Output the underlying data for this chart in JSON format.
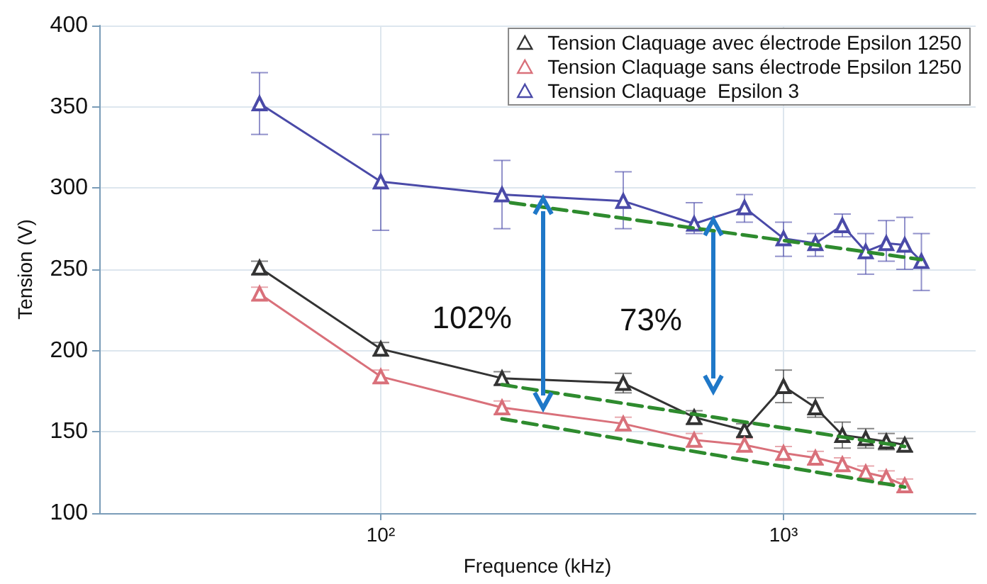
{
  "chart_data": {
    "type": "line",
    "xlabel": "Frequence (kHz)",
    "ylabel": "Tension (V)",
    "log": "x",
    "xlim": [
      20,
      3000
    ],
    "xticks": [
      {
        "value": 100,
        "label": "10²"
      },
      {
        "value": 1000,
        "label": "10³"
      }
    ],
    "ylim": [
      100,
      400
    ],
    "yticks": [
      100,
      150,
      200,
      250,
      300,
      350,
      400
    ],
    "grid": true,
    "legend": "top right",
    "marker": "triangle",
    "series": [
      {
        "name": "Tension Claquage avec électrode Epsilon 1250",
        "color": "#333333",
        "x": [
          50,
          100,
          200,
          400,
          600,
          800,
          1000,
          1200,
          1400,
          1600,
          1800,
          2000
        ],
        "values": [
          251,
          201,
          183,
          180,
          159,
          151,
          178,
          165,
          148,
          146,
          144,
          142
        ],
        "errors": [
          4,
          4,
          4,
          6,
          4,
          4,
          10,
          6,
          8,
          6,
          5,
          4
        ]
      },
      {
        "name": "Tension Claquage sans électrode Epsilon 1250",
        "color": "#d9707a",
        "x": [
          50,
          100,
          200,
          400,
          600,
          800,
          1000,
          1200,
          1400,
          1600,
          1800,
          2000
        ],
        "values": [
          235,
          184,
          165,
          155,
          145,
          142,
          137,
          134,
          130,
          125,
          122,
          117
        ],
        "errors": [
          4,
          4,
          4,
          4,
          4,
          4,
          4,
          4,
          4,
          4,
          4,
          4
        ]
      },
      {
        "name": "Tension Claquage  Epsilon 3",
        "color": "#4a4aa8",
        "x": [
          50,
          100,
          200,
          400,
          600,
          800,
          1000,
          1200,
          1400,
          1600,
          1800,
          2000,
          2200
        ],
        "values": [
          352,
          304,
          296,
          292,
          278,
          288,
          269,
          266,
          277,
          261,
          266,
          265,
          255
        ],
        "errors": [
          [
            333,
            371
          ],
          [
            274,
            333
          ],
          [
            275,
            317
          ],
          [
            275,
            310
          ],
          [
            272,
            291
          ],
          [
            279,
            296
          ],
          [
            258,
            279
          ],
          [
            258,
            272
          ],
          [
            270,
            284
          ],
          [
            247,
            272
          ],
          [
            255,
            280
          ],
          [
            250,
            282
          ],
          [
            237,
            272
          ]
        ]
      },
      {
        "color": "#2e8b2e",
        "line_style": "dashed",
        "marker": "none",
        "x": [
          210,
          2200
        ],
        "values": [
          291,
          256
        ]
      },
      {
        "color": "#2e8b2e",
        "line_style": "dashed",
        "marker": "none",
        "x": [
          200,
          2000
        ],
        "values": [
          179,
          141
        ]
      },
      {
        "color": "#2e8b2e",
        "line_style": "dashed",
        "marker": "none",
        "x": [
          200,
          2000
        ],
        "values": [
          158,
          116
        ]
      }
    ],
    "annotations": [
      "102%",
      "73%"
    ]
  }
}
